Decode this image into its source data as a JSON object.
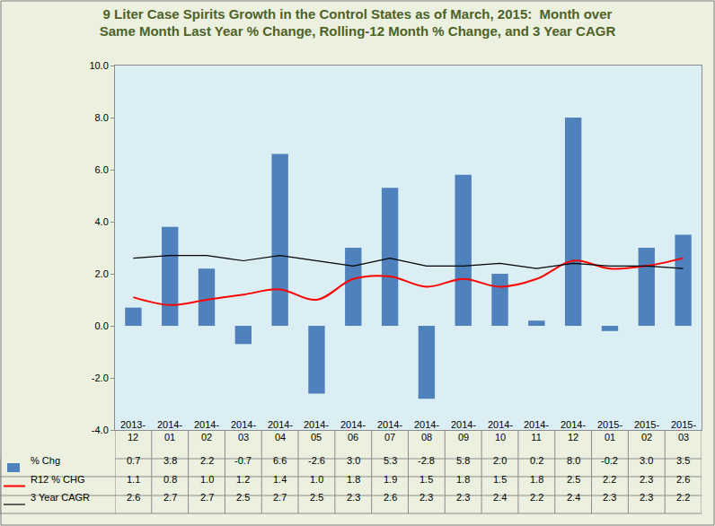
{
  "chart_data": {
    "type": "bar",
    "title": "9 Liter Case Spirits Growth in the Control States as of March, 2015:  Month over Same Month Last Year % Change, Rolling-12 Month % Change, and 3 Year CAGR",
    "categories": [
      "2013-12",
      "2014-01",
      "2014-02",
      "2014-03",
      "2014-04",
      "2014-05",
      "2014-06",
      "2014-07",
      "2014-08",
      "2014-09",
      "2014-10",
      "2014-11",
      "2014-12",
      "2015-01",
      "2015-02",
      "2015-03"
    ],
    "series": [
      {
        "name": "% Chg",
        "type": "bar",
        "color": "#4F81BD",
        "values": [
          0.7,
          3.8,
          2.2,
          -0.7,
          6.6,
          -2.6,
          3.0,
          5.3,
          -2.8,
          5.8,
          2.0,
          0.2,
          8.0,
          -0.2,
          3.0,
          3.5
        ],
        "value_labels": [
          "0.7",
          "3.8",
          "2.2",
          "-0.7",
          "6.6",
          "-2.6",
          "3.0",
          "5.3",
          "-2.8",
          "5.8",
          "2.0",
          "0.2",
          "8.0",
          "-0.2",
          "3.0",
          "3.5"
        ]
      },
      {
        "name": "R12 % CHG",
        "type": "line",
        "color": "#FF0000",
        "line_style": "smooth",
        "values": [
          1.1,
          0.8,
          1.0,
          1.2,
          1.4,
          1.0,
          1.8,
          1.9,
          1.5,
          1.8,
          1.5,
          1.8,
          2.5,
          2.2,
          2.3,
          2.6
        ],
        "value_labels": [
          "1.1",
          "0.8",
          "1.0",
          "1.2",
          "1.4",
          "1.0",
          "1.8",
          "1.9",
          "1.5",
          "1.8",
          "1.5",
          "1.8",
          "2.5",
          "2.2",
          "2.3",
          "2.6"
        ]
      },
      {
        "name": "3 Year CAGR",
        "type": "line",
        "color": "#000000",
        "line_style": "solid",
        "values": [
          2.6,
          2.7,
          2.7,
          2.5,
          2.7,
          2.5,
          2.3,
          2.6,
          2.3,
          2.3,
          2.4,
          2.2,
          2.4,
          2.3,
          2.3,
          2.2
        ],
        "value_labels": [
          "2.6",
          "2.7",
          "2.7",
          "2.5",
          "2.7",
          "2.5",
          "2.3",
          "2.6",
          "2.3",
          "2.3",
          "2.4",
          "2.2",
          "2.4",
          "2.3",
          "2.3",
          "2.2"
        ]
      }
    ],
    "ylim": [
      -4,
      10
    ],
    "yticks": [
      {
        "value": -4,
        "label": "-4.0"
      },
      {
        "value": -2,
        "label": "-2.0"
      },
      {
        "value": 0,
        "label": "0.0"
      },
      {
        "value": 2,
        "label": "2.0"
      },
      {
        "value": 4,
        "label": "4.0"
      },
      {
        "value": 6,
        "label": "6.0"
      },
      {
        "value": 8,
        "label": "8.0"
      },
      {
        "value": 10,
        "label": "10.0"
      }
    ],
    "grid": false,
    "data_labels": true
  }
}
